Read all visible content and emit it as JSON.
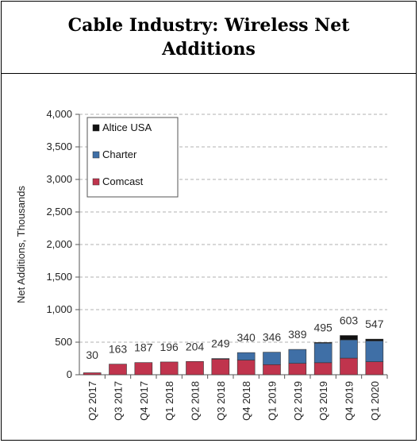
{
  "title": "Cable Industry: Wireless Net Additions",
  "colors": {
    "comcast": "#c0344d",
    "charter": "#3f6fa6",
    "altice": "#111111",
    "grid": "#b0b0b0"
  },
  "chart_data": {
    "type": "bar",
    "stacked": true,
    "title": "Cable Industry: Wireless Net Additions",
    "xlabel": "",
    "ylabel": "Net Additions, Thousands",
    "ylim": [
      0,
      4000
    ],
    "yticks": [
      "0",
      "500",
      "1,000",
      "1,500",
      "2,000",
      "2,500",
      "3,000",
      "3,500",
      "4,000"
    ],
    "grid": true,
    "legend": "top-left",
    "categories": [
      "Q2 2017",
      "Q3 2017",
      "Q4 2017",
      "Q1 2018",
      "Q2 2018",
      "Q3 2018",
      "Q4 2018",
      "Q1 2019",
      "Q2 2019",
      "Q3 2019",
      "Q4 2019",
      "Q1 2020"
    ],
    "series": [
      {
        "name": "Comcast",
        "color": "#c0344d",
        "values": [
          30,
          163,
          187,
          196,
          204,
          240,
          225,
          155,
          175,
          185,
          255,
          200
        ]
      },
      {
        "name": "Charter",
        "color": "#3f6fa6",
        "values": [
          0,
          0,
          0,
          0,
          0,
          9,
          115,
          191,
          214,
          300,
          280,
          320
        ]
      },
      {
        "name": "Altice USA",
        "color": "#111111",
        "values": [
          0,
          0,
          0,
          0,
          0,
          0,
          0,
          0,
          0,
          10,
          68,
          27
        ]
      }
    ],
    "totals": [
      "30",
      "163",
      "187",
      "196",
      "204",
      "249",
      "340",
      "346",
      "389",
      "495",
      "603",
      "547"
    ]
  }
}
